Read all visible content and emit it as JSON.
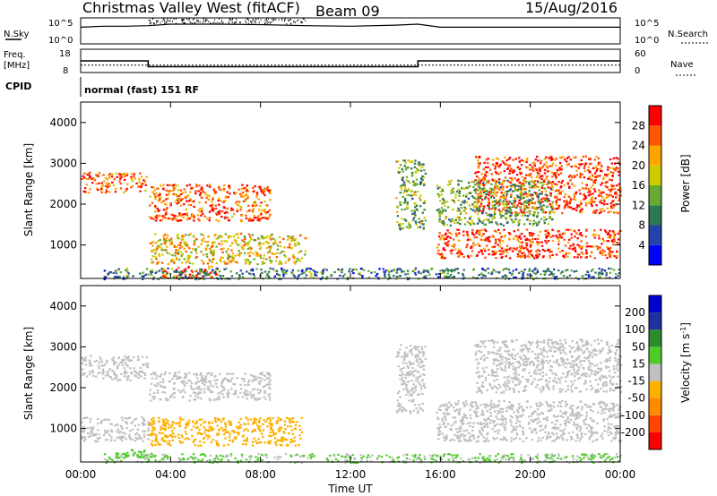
{
  "header": {
    "station": "Christmas Valley West (fitACF)",
    "beam": "Beam 09",
    "date": "15/Aug/2016"
  },
  "params": {
    "nsky_label": "N.Sky",
    "nsky_ticks": [
      "10^5",
      "10^0"
    ],
    "nsearch_label": "N.Search",
    "nsearch_ticks": [
      "10^5",
      "10^0"
    ],
    "freq_label": "Freq.",
    "freq_unit": "[MHz]",
    "freq_ticks": [
      "18",
      "8"
    ],
    "nave_label": "Nave",
    "nave_ticks": [
      "60",
      "0"
    ],
    "cpid_label": "CPID",
    "cpid_text": "normal (fast) 151 RF"
  },
  "colors": {
    "power_scale": [
      "#0000ff",
      "#2244aa",
      "#2e7a50",
      "#66aa33",
      "#cccc00",
      "#ffa500",
      "#ff5500",
      "#ff0000"
    ],
    "velocity_scale": [
      "#ff0000",
      "#ff4400",
      "#ff8c00",
      "#ffb000",
      "#c0c0c0",
      "#4fcc2a",
      "#2a8c2a",
      "#2030a0",
      "#0000cc"
    ],
    "gray_scatter": "#c0c0c0"
  },
  "chart_data": [
    {
      "type": "line",
      "panel": "N.Sky / N.Search",
      "x": [
        0,
        1,
        2,
        3,
        4,
        6,
        8,
        10,
        12,
        14,
        15,
        16,
        18,
        20,
        22,
        24
      ],
      "series": [
        {
          "name": "N.Sky",
          "values": [
            3.2,
            3.4,
            3.4,
            3.5,
            3.8,
            3.8,
            3.7,
            3.5,
            3.4,
            3.6,
            3.8,
            3.2,
            3.2,
            3.2,
            3.2,
            3.2
          ]
        }
      ],
      "ylim": [
        0,
        5
      ],
      "ylabel": "N.Sky"
    },
    {
      "type": "line",
      "panel": "Freq. / Nave",
      "x": [
        0,
        3,
        3,
        15,
        15,
        24
      ],
      "series": [
        {
          "name": "Freq.",
          "values": [
            13,
            13,
            10.5,
            10.5,
            13,
            13
          ]
        },
        {
          "name": "Nave",
          "values": [
            22,
            22,
            22,
            22,
            22,
            22
          ]
        }
      ],
      "ylim": [
        8,
        18
      ],
      "ylabel": "Freq. [MHz]"
    },
    {
      "type": "heatmap",
      "panel": "Power",
      "xlabel": "",
      "ylabel": "Slant Range [km]",
      "xlim": [
        0,
        24
      ],
      "ylim": [
        180,
        4500
      ],
      "yticks": [
        "1000",
        "2000",
        "3000",
        "4000"
      ],
      "colorbar_label": "Power [dB]",
      "colorbar_ticks": [
        "4",
        "8",
        "12",
        "16",
        "20",
        "24",
        "28"
      ],
      "colorbar_range": [
        0,
        32
      ],
      "regions": [
        {
          "x": [
            0,
            2.9
          ],
          "range": [
            2300,
            2800
          ],
          "value": 26
        },
        {
          "x": [
            3.0,
            8.4
          ],
          "range": [
            1600,
            2500
          ],
          "value": 26
        },
        {
          "x": [
            3.0,
            10.0
          ],
          "range": [
            550,
            1300
          ],
          "value": 20
        },
        {
          "x": [
            3.5,
            6.0
          ],
          "range": [
            200,
            500
          ],
          "value": 28
        },
        {
          "x": [
            14.0,
            15.3
          ],
          "range": [
            1400,
            3100
          ],
          "value": 14
        },
        {
          "x": [
            15.8,
            24
          ],
          "range": [
            700,
            1400
          ],
          "value": 28
        },
        {
          "x": [
            17.5,
            24
          ],
          "range": [
            1800,
            3200
          ],
          "value": 28
        },
        {
          "x": [
            15.8,
            21.0
          ],
          "range": [
            1500,
            2600
          ],
          "value": 14
        },
        {
          "x": [
            1.0,
            24
          ],
          "range": [
            180,
            450
          ],
          "value": 10
        }
      ]
    },
    {
      "type": "heatmap",
      "panel": "Velocity",
      "xlabel": "Time UT",
      "ylabel": "Slant Range [km]",
      "xlim": [
        0,
        24
      ],
      "ylim": [
        180,
        4500
      ],
      "xticks": [
        "00:00",
        "04:00",
        "08:00",
        "12:00",
        "16:00",
        "20:00",
        "00:00"
      ],
      "yticks": [
        "1000",
        "2000",
        "3000",
        "4000"
      ],
      "colorbar_label": "Velocity [m s^-1]",
      "colorbar_ticks": [
        "-200",
        "-100",
        "-50",
        "-15",
        "15",
        "50",
        "100",
        "200"
      ],
      "colorbar_range": [
        -250,
        250
      ],
      "regions": [
        {
          "x": [
            0,
            3.0
          ],
          "range": [
            2200,
            2800
          ],
          "value": 0
        },
        {
          "x": [
            3.0,
            8.4
          ],
          "range": [
            1700,
            2400
          ],
          "value": 0
        },
        {
          "x": [
            0,
            3.0
          ],
          "range": [
            700,
            1300
          ],
          "value": 0
        },
        {
          "x": [
            3.0,
            9.8
          ],
          "range": [
            600,
            1300
          ],
          "value": -60
        },
        {
          "x": [
            1.5,
            3.3
          ],
          "range": [
            300,
            500
          ],
          "value": 60
        },
        {
          "x": [
            14.0,
            15.3
          ],
          "range": [
            1400,
            3100
          ],
          "value": 0
        },
        {
          "x": [
            15.8,
            24
          ],
          "range": [
            700,
            1700
          ],
          "value": 0
        },
        {
          "x": [
            17.5,
            24
          ],
          "range": [
            1900,
            3200
          ],
          "value": 0
        },
        {
          "x": [
            1.0,
            24
          ],
          "range": [
            180,
            400
          ],
          "value": 30
        }
      ]
    }
  ]
}
